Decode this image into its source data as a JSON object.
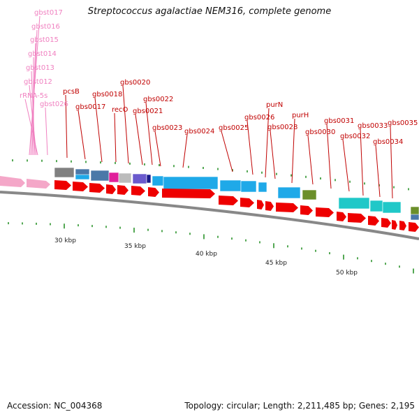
{
  "title": "Streptococcus agalactiae NEM316, complete genome",
  "footer": {
    "accession": "Accession: NC_004368",
    "summary": "Topology: circular; Length: 2,211,485 bp; Genes: 2,195"
  },
  "colors": {
    "label": "#c00000",
    "rna_label": "#f080c0",
    "cds": "#ee0000",
    "blue": "#1fa9e8",
    "cyan": "#20c8c8",
    "gray": "#808080",
    "navy": "#4a78a8",
    "olive": "#6b8f2a",
    "backbone": "#888888",
    "tick": "#1a8a1a"
  },
  "scale_labels": [
    "30 kbp",
    "35 kbp",
    "40 kbp",
    "45 kbp",
    "50 kbp"
  ],
  "gene_labels": [
    {
      "text": "gbst017",
      "rna": true
    },
    {
      "text": "gbst016",
      "rna": true
    },
    {
      "text": "gbst015",
      "rna": true
    },
    {
      "text": "gbst014",
      "rna": true
    },
    {
      "text": "gbst013",
      "rna": true
    },
    {
      "text": "gbst012",
      "rna": true
    },
    {
      "text": "rRNA-5s",
      "rna": true
    },
    {
      "text": "gbst026",
      "rna": true
    },
    {
      "text": "pcsB",
      "rna": false
    },
    {
      "text": "gbs0017",
      "rna": false
    },
    {
      "text": "gbs0018",
      "rna": false
    },
    {
      "text": "recO",
      "rna": false
    },
    {
      "text": "gbs0020",
      "rna": false
    },
    {
      "text": "gbs0021",
      "rna": false
    },
    {
      "text": "gbs0022",
      "rna": false
    },
    {
      "text": "gbs0023",
      "rna": false
    },
    {
      "text": "gbs0024",
      "rna": false
    },
    {
      "text": "gbs0025",
      "rna": false
    },
    {
      "text": "gbs0026",
      "rna": false
    },
    {
      "text": "purN",
      "rna": false
    },
    {
      "text": "gbs0028",
      "rna": false
    },
    {
      "text": "purH",
      "rna": false
    },
    {
      "text": "gbs0030",
      "rna": false
    },
    {
      "text": "gbs0031",
      "rna": false
    },
    {
      "text": "gbs0032",
      "rna": false
    },
    {
      "text": "gbs0033",
      "rna": false
    },
    {
      "text": "gbs0034",
      "rna": false
    },
    {
      "text": "gbs0035",
      "rna": false
    }
  ]
}
